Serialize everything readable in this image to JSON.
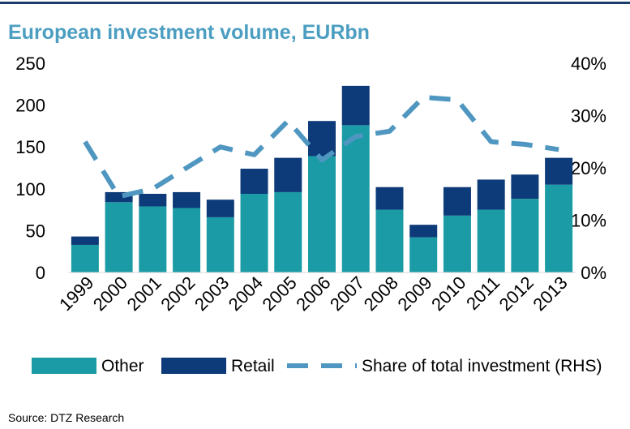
{
  "title": "European investment volume, EURbn",
  "source": "Source: DTZ Research",
  "colors": {
    "other": "#1b9ba5",
    "retail": "#0d3a78",
    "share": "#4f97c0",
    "rule": "#1a3d6e",
    "title": "#4b9ec1"
  },
  "chart_data": {
    "type": "bar",
    "stacked": true,
    "categories": [
      "1999",
      "2000",
      "2001",
      "2002",
      "2003",
      "2004",
      "2005",
      "2006",
      "2007",
      "2008",
      "2009",
      "2010",
      "2011",
      "2012",
      "2013"
    ],
    "series": [
      {
        "name": "Other",
        "axis": "left",
        "values": [
          33,
          84,
          79,
          77,
          66,
          94,
          96,
          139,
          176,
          75,
          42,
          68,
          75,
          88,
          105
        ]
      },
      {
        "name": "Retail",
        "axis": "left",
        "values": [
          10,
          12,
          15,
          19,
          21,
          30,
          41,
          42,
          47,
          27,
          15,
          34,
          36,
          29,
          32
        ]
      },
      {
        "name": "Share of total investment (RHS)",
        "axis": "right",
        "type": "line",
        "style": "dashed",
        "values": [
          25,
          14.5,
          16,
          20,
          24,
          22.5,
          29,
          21.5,
          26,
          27,
          33.5,
          33,
          25,
          24.5,
          23.5
        ]
      }
    ],
    "yaxis_left": {
      "min": 0,
      "max": 250,
      "ticks": [
        "0",
        "50",
        "100",
        "150",
        "200",
        "250"
      ]
    },
    "yaxis_right": {
      "min": 0,
      "max": 40,
      "ticks": [
        "0%",
        "10%",
        "20%",
        "30%",
        "40%"
      ]
    },
    "grid": false,
    "legend_position": "bottom",
    "legend": [
      "Other",
      "Retail",
      "Share of total investment (RHS)"
    ]
  }
}
